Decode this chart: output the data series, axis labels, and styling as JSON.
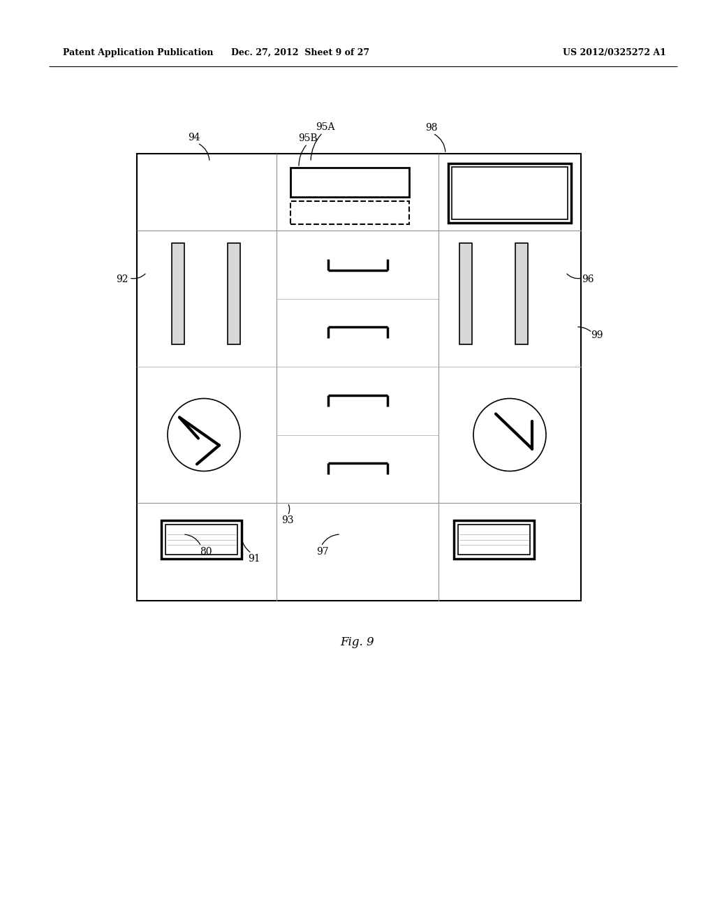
{
  "bg_color": "#ffffff",
  "header_text_left": "Patent Application Publication",
  "header_text_mid": "Dec. 27, 2012  Sheet 9 of 27",
  "header_text_right": "US 2012/0325272 A1",
  "fig_label": "Fig. 9",
  "figw": 10.24,
  "figh": 13.2,
  "dpi": 100
}
